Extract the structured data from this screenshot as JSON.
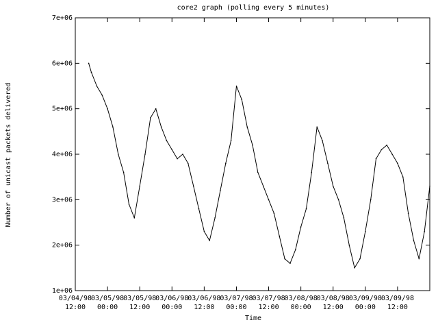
{
  "chart_data": {
    "type": "line",
    "title": "core2 graph (polling every 5 minutes)",
    "xlabel": "Time",
    "ylabel": "Number of unicast packets delivered",
    "ylim": [
      1000000,
      7000000
    ],
    "xlim": [
      "03/04/98 12:00",
      "03/10/98 00:00"
    ],
    "y_ticks": [
      {
        "value": 1000000,
        "label": "1e+06"
      },
      {
        "value": 2000000,
        "label": "2e+06"
      },
      {
        "value": 3000000,
        "label": "3e+06"
      },
      {
        "value": 4000000,
        "label": "4e+06"
      },
      {
        "value": 5000000,
        "label": "5e+06"
      },
      {
        "value": 6000000,
        "label": "6e+06"
      },
      {
        "value": 7000000,
        "label": "7e+06"
      }
    ],
    "x_ticks": [
      {
        "date": "03/04/98",
        "time": "12:00"
      },
      {
        "date": "03/05/98",
        "time": "00:00"
      },
      {
        "date": "03/05/98",
        "time": "12:00"
      },
      {
        "date": "03/06/98",
        "time": "00:00"
      },
      {
        "date": "03/06/98",
        "time": "12:00"
      },
      {
        "date": "03/07/98",
        "time": "00:00"
      },
      {
        "date": "03/07/98",
        "time": "12:00"
      },
      {
        "date": "03/08/98",
        "time": "00:00"
      },
      {
        "date": "03/08/98",
        "time": "12:00"
      },
      {
        "date": "03/09/98",
        "time": "00:00"
      },
      {
        "date": "03/09/98",
        "time": "12:00"
      }
    ],
    "series": [
      {
        "color": "#000000",
        "x": [
          "03/04/98 17:00",
          "03/04/98 18:00",
          "03/04/98 20:00",
          "03/04/98 22:00",
          "03/05/98 00:00",
          "03/05/98 02:00",
          "03/05/98 04:00",
          "03/05/98 06:00",
          "03/05/98 08:00",
          "03/05/98 10:00",
          "03/05/98 12:00",
          "03/05/98 14:00",
          "03/05/98 16:00",
          "03/05/98 18:00",
          "03/05/98 20:00",
          "03/05/98 22:00",
          "03/06/98 00:00",
          "03/06/98 02:00",
          "03/06/98 04:00",
          "03/06/98 06:00",
          "03/06/98 08:00",
          "03/06/98 10:00",
          "03/06/98 12:00",
          "03/06/98 14:00",
          "03/06/98 16:00",
          "03/06/98 18:00",
          "03/06/98 20:00",
          "03/06/98 22:00",
          "03/07/98 00:00",
          "03/07/98 02:00",
          "03/07/98 04:00",
          "03/07/98 06:00",
          "03/07/98 08:00",
          "03/07/98 10:00",
          "03/07/98 12:00",
          "03/07/98 14:00",
          "03/07/98 16:00",
          "03/07/98 18:00",
          "03/07/98 20:00",
          "03/07/98 22:00",
          "03/08/98 00:00",
          "03/08/98 02:00",
          "03/08/98 04:00",
          "03/08/98 06:00",
          "03/08/98 08:00",
          "03/08/98 10:00",
          "03/08/98 12:00",
          "03/08/98 14:00",
          "03/08/98 16:00",
          "03/08/98 18:00",
          "03/08/98 20:00",
          "03/08/98 22:00",
          "03/09/98 00:00",
          "03/09/98 02:00",
          "03/09/98 04:00",
          "03/09/98 06:00",
          "03/09/98 08:00",
          "03/09/98 10:00",
          "03/09/98 12:00",
          "03/09/98 14:00",
          "03/09/98 16:00",
          "03/09/98 18:00",
          "03/09/98 20:00",
          "03/09/98 22:00",
          "03/10/98 00:00"
        ],
        "y": [
          6000000,
          5800000,
          5500000,
          5300000,
          5000000,
          4600000,
          4000000,
          3600000,
          2900000,
          2600000,
          3300000,
          4000000,
          4800000,
          5000000,
          4600000,
          4300000,
          4100000,
          3900000,
          4000000,
          3800000,
          3300000,
          2800000,
          2300000,
          2100000,
          2600000,
          3200000,
          3800000,
          4300000,
          5500000,
          5200000,
          4600000,
          4200000,
          3600000,
          3300000,
          3000000,
          2700000,
          2200000,
          1700000,
          1600000,
          1900000,
          2400000,
          2800000,
          3600000,
          4600000,
          4300000,
          3800000,
          3300000,
          3000000,
          2600000,
          2000000,
          1500000,
          1700000,
          2300000,
          3000000,
          3900000,
          4100000,
          4200000,
          4000000,
          3800000,
          3500000,
          2700000,
          2100000,
          1700000,
          2300000,
          3300000
        ]
      }
    ]
  }
}
